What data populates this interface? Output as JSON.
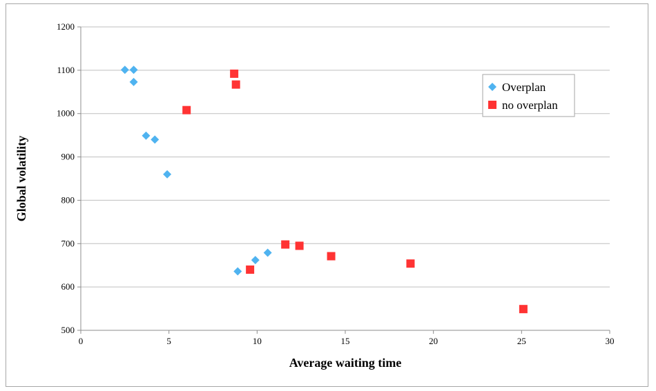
{
  "chart_data": {
    "type": "scatter",
    "title": "",
    "xlabel": "Average waiting time",
    "ylabel": "Global volatility",
    "xlim": [
      0,
      30
    ],
    "ylim": [
      500,
      1200
    ],
    "xticks": [
      0,
      5,
      10,
      15,
      20,
      25,
      30
    ],
    "yticks": [
      500,
      600,
      700,
      800,
      900,
      1000,
      1100,
      1200
    ],
    "grid": "horizontal",
    "legend_position": "right",
    "series": [
      {
        "name": "Overplan",
        "marker": "diamond",
        "color": "#4fb3f0",
        "points": [
          {
            "x": 2.5,
            "y": 1101
          },
          {
            "x": 3.0,
            "y": 1101
          },
          {
            "x": 3.0,
            "y": 1073
          },
          {
            "x": 3.7,
            "y": 949
          },
          {
            "x": 4.2,
            "y": 940
          },
          {
            "x": 4.9,
            "y": 860
          },
          {
            "x": 8.9,
            "y": 636
          },
          {
            "x": 9.9,
            "y": 662
          },
          {
            "x": 10.6,
            "y": 679
          }
        ]
      },
      {
        "name": "no overplan",
        "marker": "square",
        "color": "#ff3333",
        "points": [
          {
            "x": 6.0,
            "y": 1008
          },
          {
            "x": 8.7,
            "y": 1092
          },
          {
            "x": 8.8,
            "y": 1067
          },
          {
            "x": 9.6,
            "y": 640
          },
          {
            "x": 11.6,
            "y": 698
          },
          {
            "x": 12.4,
            "y": 695
          },
          {
            "x": 14.2,
            "y": 671
          },
          {
            "x": 18.7,
            "y": 654
          },
          {
            "x": 25.1,
            "y": 549
          }
        ]
      }
    ]
  }
}
